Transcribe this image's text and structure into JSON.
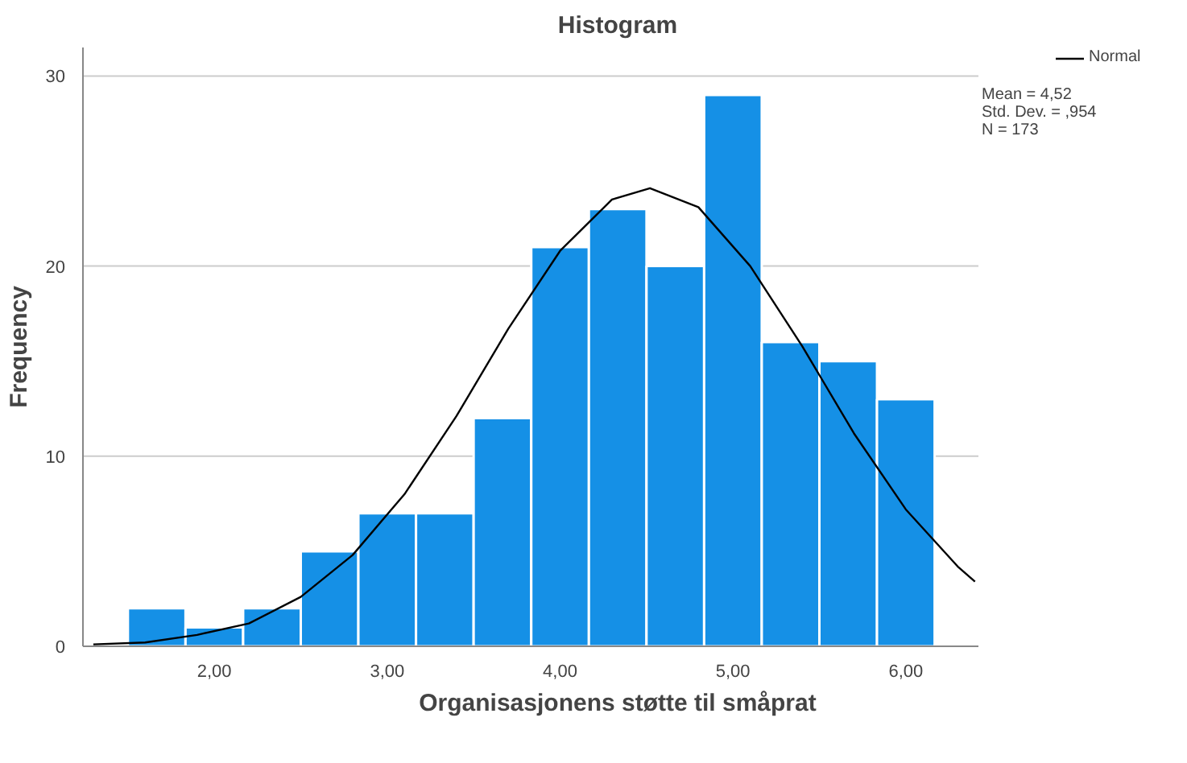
{
  "chart_data": {
    "type": "histogram",
    "title": "Histogram",
    "xlabel": "Organisasjonens støtte til småprat",
    "ylabel": "Frequency",
    "bins": [
      1.5,
      1.8333,
      2.1667,
      2.5,
      2.8333,
      3.1667,
      3.5,
      3.8333,
      4.1667,
      4.5,
      4.8333,
      5.1667,
      5.5,
      5.8333,
      6.1667
    ],
    "values": [
      2,
      1,
      2,
      5,
      7,
      7,
      12,
      21,
      23,
      20,
      29,
      16,
      15,
      13
    ],
    "color": "#1590e6",
    "series": [
      {
        "name": "Normal",
        "type": "line",
        "color": "#000000",
        "x": [
          1.3,
          1.6,
          1.9,
          2.2,
          2.5,
          2.8,
          3.1,
          3.4,
          3.7,
          4.0,
          4.3,
          4.52,
          4.8,
          5.1,
          5.4,
          5.7,
          6.0,
          6.3,
          6.4
        ],
        "values": [
          0.1,
          0.2,
          0.6,
          1.2,
          2.6,
          4.8,
          8.0,
          12.1,
          16.7,
          20.8,
          23.5,
          24.1,
          23.1,
          20.0,
          15.8,
          11.2,
          7.2,
          4.2,
          3.4
        ]
      }
    ],
    "annotations": [
      "Mean = 4,52",
      "Std. Dev. = ,954",
      "N = 173"
    ],
    "xlim": [
      1.24,
      6.42
    ],
    "ylim": [
      0,
      31.5
    ],
    "xticks": [
      {
        "value": 2,
        "label": "2,00"
      },
      {
        "value": 3,
        "label": "3,00"
      },
      {
        "value": 4,
        "label": "4,00"
      },
      {
        "value": 5,
        "label": "5,00"
      },
      {
        "value": 6,
        "label": "6,00"
      }
    ],
    "yticks": [
      0,
      10,
      20,
      30
    ],
    "grid": "y",
    "legend": "top right"
  }
}
